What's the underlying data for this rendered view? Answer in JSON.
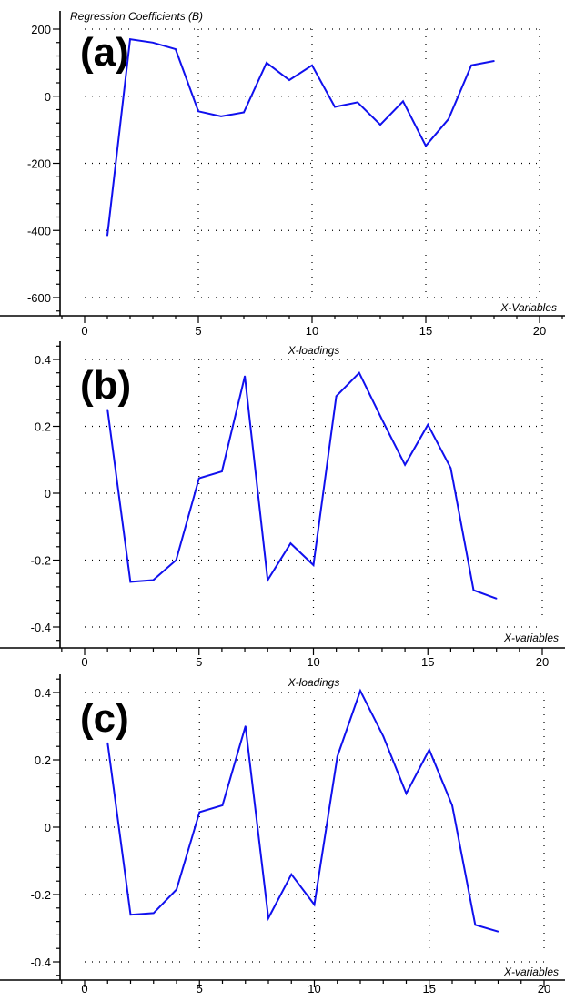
{
  "colors": {
    "series": "#1010ee",
    "axis": "#000000"
  },
  "chart_data": [
    {
      "type": "line",
      "panel_label": "(a)",
      "title": "Regression Coefficients (B)",
      "xlabel": "X-Variables",
      "ylabel": "",
      "xlim": [
        -1,
        21
      ],
      "ylim": [
        -650,
        205
      ],
      "x_ticks": [
        0,
        5,
        10,
        15,
        20
      ],
      "y_ticks": [
        200,
        0,
        -200,
        -400,
        -600
      ],
      "x_tick_labels": [
        "0",
        "5",
        "10",
        "15",
        "20"
      ],
      "y_tick_labels": [
        "200",
        "0",
        "-200",
        "-400",
        "-600"
      ],
      "grid": true,
      "series": [
        {
          "x": [
            1,
            2,
            3,
            4,
            5,
            6,
            7,
            8,
            9,
            10,
            11,
            12,
            13,
            14,
            15,
            16,
            17,
            18
          ],
          "values": [
            -415,
            170,
            160,
            140,
            -45,
            -60,
            -48,
            100,
            48,
            92,
            -32,
            -18,
            -85,
            -15,
            -148,
            -68,
            92,
            105
          ]
        }
      ]
    },
    {
      "type": "line",
      "panel_label": "(b)",
      "title": "X-loadings",
      "xlabel": "X-variables",
      "ylabel": "",
      "xlim": [
        -1,
        21
      ],
      "ylim": [
        -0.46,
        0.44
      ],
      "x_ticks": [
        0,
        5,
        10,
        15,
        20
      ],
      "y_ticks": [
        0.4,
        0.2,
        0,
        -0.2,
        -0.4
      ],
      "x_tick_labels": [
        "0",
        "5",
        "10",
        "15",
        "20"
      ],
      "y_tick_labels": [
        "0.4",
        "0.2",
        "0",
        "-0.2",
        "-0.4"
      ],
      "grid": true,
      "series": [
        {
          "x": [
            1,
            2,
            3,
            4,
            5,
            6,
            7,
            8,
            9,
            10,
            11,
            12,
            13,
            14,
            15,
            16,
            17,
            18
          ],
          "values": [
            0.25,
            -0.265,
            -0.26,
            -0.2,
            0.045,
            0.065,
            0.35,
            -0.26,
            -0.15,
            -0.215,
            0.29,
            0.36,
            0.22,
            0.085,
            0.205,
            0.075,
            -0.29,
            -0.315
          ]
        }
      ]
    },
    {
      "type": "line",
      "panel_label": "(c)",
      "title": "X-loadings",
      "xlabel": "X-variables",
      "ylabel": "",
      "xlim": [
        -1,
        21
      ],
      "ylim": [
        -0.46,
        0.44
      ],
      "x_ticks": [
        0,
        5,
        10,
        15,
        20
      ],
      "y_ticks": [
        0.4,
        0.2,
        0,
        -0.2,
        -0.4
      ],
      "x_tick_labels": [
        "0",
        "5",
        "10",
        "15",
        "20"
      ],
      "y_tick_labels": [
        "0.4",
        "0.2",
        "0",
        "-0.2",
        "-0.4"
      ],
      "grid": true,
      "series": [
        {
          "x": [
            1,
            2,
            3,
            4,
            5,
            6,
            7,
            8,
            9,
            10,
            11,
            12,
            13,
            14,
            15,
            16,
            17,
            18
          ],
          "values": [
            0.25,
            -0.26,
            -0.255,
            -0.185,
            0.045,
            0.065,
            0.3,
            -0.27,
            -0.14,
            -0.23,
            0.21,
            0.405,
            0.27,
            0.1,
            0.23,
            0.065,
            -0.29,
            -0.31
          ]
        }
      ]
    }
  ]
}
